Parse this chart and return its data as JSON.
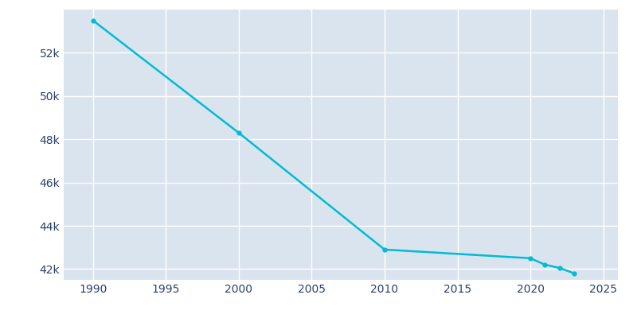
{
  "years": [
    1990,
    2000,
    2010,
    2020,
    2021,
    2022,
    2023
  ],
  "population": [
    53500,
    48300,
    42900,
    42500,
    42200,
    42050,
    41800
  ],
  "line_color": "#00BCD4",
  "marker_color": "#00BCD4",
  "plot_bg_color": "#DAE4EF",
  "fig_bg_color": "#FFFFFF",
  "grid_color": "#FFFFFF",
  "tick_color": "#2C3E6B",
  "xlim": [
    1988,
    2026
  ],
  "ylim": [
    41500,
    54000
  ],
  "yticks": [
    42000,
    44000,
    46000,
    48000,
    50000,
    52000
  ],
  "ytick_labels": [
    "42k",
    "44k",
    "46k",
    "48k",
    "50k",
    "52k"
  ],
  "xticks": [
    1990,
    1995,
    2000,
    2005,
    2010,
    2015,
    2020,
    2025
  ],
  "figsize": [
    8.0,
    4.0
  ],
  "dpi": 100
}
